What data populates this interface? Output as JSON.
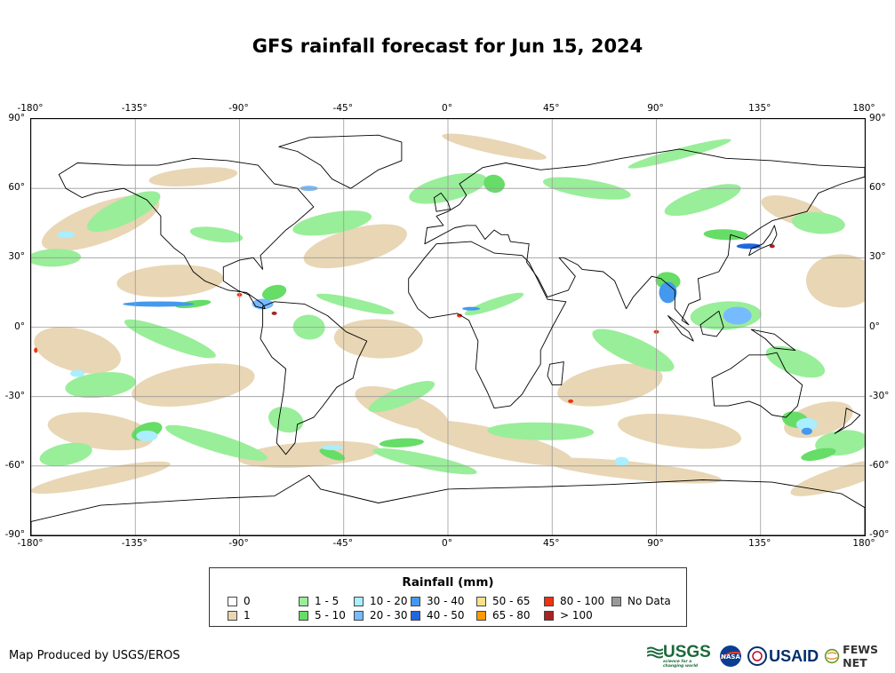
{
  "title": "GFS rainfall forecast for Jun 15, 2024",
  "map": {
    "lon_ticks": [
      "-180°",
      "-135°",
      "-90°",
      "-45°",
      "0°",
      "45°",
      "90°",
      "135°",
      "180°"
    ],
    "lat_ticks": [
      "90°",
      "60°",
      "30°",
      "0°",
      "-30°",
      "-60°",
      "-90°"
    ],
    "colors": {
      "land_outline": "#000000",
      "graticule": "#9a9a9a",
      "rain_1": "#e8d6b5",
      "rain_1_5": "#99ee99",
      "rain_5_10": "#66dd66",
      "rain_10_20": "#aaeeff",
      "rain_20_30": "#77bbff",
      "rain_30_40": "#4499ee",
      "rain_40_50": "#2266dd",
      "rain_80_100": "#ee3311",
      "rain_gt100": "#aa2222"
    }
  },
  "legend": {
    "title": "Rainfall (mm)",
    "items": [
      {
        "label": "0",
        "color": "#ffffff"
      },
      {
        "label": "1",
        "color": "#e8d6b5"
      },
      {
        "label": "1 - 5",
        "color": "#99ee99"
      },
      {
        "label": "5 - 10",
        "color": "#66dd66"
      },
      {
        "label": "10 - 20",
        "color": "#aaeeff"
      },
      {
        "label": "20 - 30",
        "color": "#77bbff"
      },
      {
        "label": "30 - 40",
        "color": "#4499ee"
      },
      {
        "label": "40 - 50",
        "color": "#2266dd"
      },
      {
        "label": "50 - 65",
        "color": "#ffe08a"
      },
      {
        "label": "65 - 80",
        "color": "#ff9900"
      },
      {
        "label": "80 - 100",
        "color": "#ee3311"
      },
      {
        "label": "> 100",
        "color": "#aa2222"
      },
      {
        "label": "No Data",
        "color": "#999999"
      }
    ]
  },
  "credit": "Map Produced by USGS/EROS",
  "logos": {
    "usgs": "USGS",
    "usgs_tagline": "science for a changing world",
    "nasa": "NASA",
    "usaid": "USAID",
    "fews": "FEWS NET"
  }
}
